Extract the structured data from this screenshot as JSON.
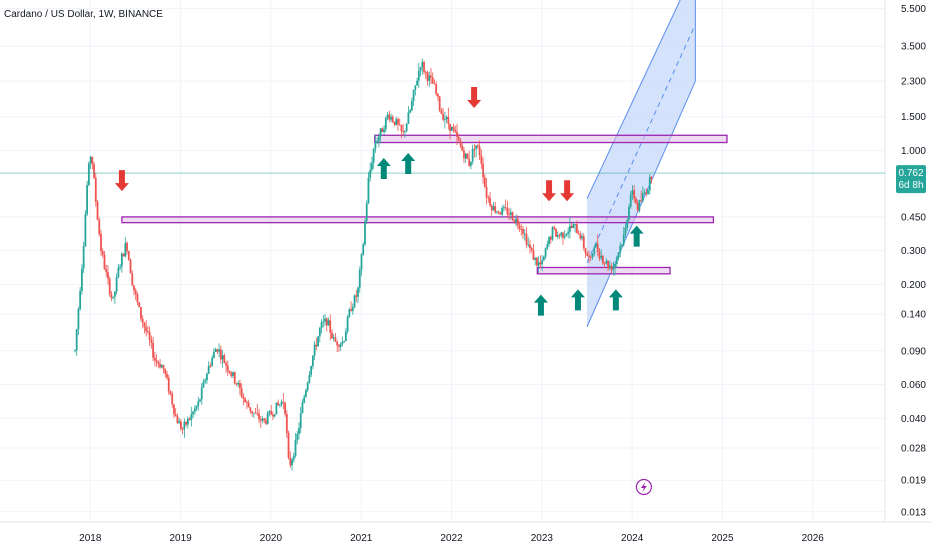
{
  "chart_data": {
    "type": "candlestick",
    "title": "Cardano / US Dollar, 1W, BINANCE",
    "y_scale": "log",
    "ylim": [
      0.0115,
      6.1
    ],
    "y_ticks": [
      {
        "value": 5.5,
        "label": "5.500"
      },
      {
        "value": 3.5,
        "label": "3.500"
      },
      {
        "value": 2.3,
        "label": "2.300"
      },
      {
        "value": 1.5,
        "label": "1.500"
      },
      {
        "value": 1.0,
        "label": "1.000"
      },
      {
        "value": 0.45,
        "label": "0.450"
      },
      {
        "value": 0.3,
        "label": "0.300"
      },
      {
        "value": 0.2,
        "label": "0.200"
      },
      {
        "value": 0.14,
        "label": "0.140"
      },
      {
        "value": 0.09,
        "label": "0.090"
      },
      {
        "value": 0.06,
        "label": "0.060"
      },
      {
        "value": 0.04,
        "label": "0.040"
      },
      {
        "value": 0.028,
        "label": "0.028"
      },
      {
        "value": 0.019,
        "label": "0.019"
      },
      {
        "value": 0.013,
        "label": "0.013"
      }
    ],
    "xlim": [
      2017.0,
      2026.8
    ],
    "x_ticks": [
      {
        "value": 2018,
        "label": "2018"
      },
      {
        "value": 2019,
        "label": "2019"
      },
      {
        "value": 2020,
        "label": "2020"
      },
      {
        "value": 2021,
        "label": "2021"
      },
      {
        "value": 2022,
        "label": "2022"
      },
      {
        "value": 2023,
        "label": "2023"
      },
      {
        "value": 2024,
        "label": "2024"
      },
      {
        "value": 2025,
        "label": "2025"
      },
      {
        "value": 2026,
        "label": "2026"
      }
    ],
    "current_price": {
      "value": 0.762,
      "label": "0.762",
      "countdown": "6d 8h"
    },
    "price_path": [
      [
        2017.83,
        0.09
      ],
      [
        2017.92,
        0.3
      ],
      [
        2017.97,
        0.72
      ],
      [
        2018.01,
        1.0
      ],
      [
        2018.06,
        0.55
      ],
      [
        2018.12,
        0.3
      ],
      [
        2018.18,
        0.22
      ],
      [
        2018.25,
        0.16
      ],
      [
        2018.32,
        0.25
      ],
      [
        2018.4,
        0.33
      ],
      [
        2018.47,
        0.2
      ],
      [
        2018.55,
        0.14
      ],
      [
        2018.63,
        0.11
      ],
      [
        2018.72,
        0.08
      ],
      [
        2018.8,
        0.075
      ],
      [
        2018.88,
        0.055
      ],
      [
        2018.95,
        0.04
      ],
      [
        2019.02,
        0.035
      ],
      [
        2019.1,
        0.04
      ],
      [
        2019.2,
        0.048
      ],
      [
        2019.3,
        0.072
      ],
      [
        2019.4,
        0.095
      ],
      [
        2019.48,
        0.08
      ],
      [
        2019.55,
        0.07
      ],
      [
        2019.63,
        0.06
      ],
      [
        2019.72,
        0.048
      ],
      [
        2019.82,
        0.042
      ],
      [
        2019.92,
        0.038
      ],
      [
        2020.05,
        0.045
      ],
      [
        2020.15,
        0.05
      ],
      [
        2020.2,
        0.022
      ],
      [
        2020.28,
        0.03
      ],
      [
        2020.36,
        0.05
      ],
      [
        2020.45,
        0.08
      ],
      [
        2020.55,
        0.12
      ],
      [
        2020.62,
        0.13
      ],
      [
        2020.7,
        0.1
      ],
      [
        2020.8,
        0.1
      ],
      [
        2020.88,
        0.15
      ],
      [
        2020.96,
        0.18
      ],
      [
        2021.02,
        0.32
      ],
      [
        2021.08,
        0.7
      ],
      [
        2021.15,
        1.1
      ],
      [
        2021.22,
        1.25
      ],
      [
        2021.3,
        1.55
      ],
      [
        2021.38,
        1.4
      ],
      [
        2021.46,
        1.2
      ],
      [
        2021.54,
        1.6
      ],
      [
        2021.62,
        2.4
      ],
      [
        2021.66,
        2.9
      ],
      [
        2021.72,
        2.5
      ],
      [
        2021.8,
        2.2
      ],
      [
        2021.88,
        1.6
      ],
      [
        2021.96,
        1.4
      ],
      [
        2022.04,
        1.2
      ],
      [
        2022.12,
        1.0
      ],
      [
        2022.2,
        0.85
      ],
      [
        2022.26,
        1.1
      ],
      [
        2022.32,
        0.95
      ],
      [
        2022.38,
        0.6
      ],
      [
        2022.46,
        0.5
      ],
      [
        2022.54,
        0.48
      ],
      [
        2022.62,
        0.48
      ],
      [
        2022.7,
        0.44
      ],
      [
        2022.78,
        0.4
      ],
      [
        2022.86,
        0.31
      ],
      [
        2022.94,
        0.26
      ],
      [
        2023.0,
        0.25
      ],
      [
        2023.06,
        0.32
      ],
      [
        2023.12,
        0.38
      ],
      [
        2023.18,
        0.36
      ],
      [
        2023.24,
        0.37
      ],
      [
        2023.3,
        0.39
      ],
      [
        2023.36,
        0.4
      ],
      [
        2023.42,
        0.37
      ],
      [
        2023.48,
        0.3
      ],
      [
        2023.54,
        0.26
      ],
      [
        2023.58,
        0.33
      ],
      [
        2023.62,
        0.3
      ],
      [
        2023.68,
        0.27
      ],
      [
        2023.74,
        0.25
      ],
      [
        2023.8,
        0.25
      ],
      [
        2023.86,
        0.31
      ],
      [
        2023.92,
        0.37
      ],
      [
        2023.98,
        0.6
      ],
      [
        2024.02,
        0.58
      ],
      [
        2024.06,
        0.5
      ],
      [
        2024.12,
        0.58
      ],
      [
        2024.18,
        0.65
      ],
      [
        2024.22,
        0.762
      ]
    ],
    "zones": [
      {
        "name": "resistance-zone-upper",
        "x_start": 2021.15,
        "x_end": 2025.05,
        "y_low": 1.1,
        "y_high": 1.2
      },
      {
        "name": "resistance-zone-middle",
        "x_start": 2018.35,
        "x_end": 2024.9,
        "y_low": 0.42,
        "y_high": 0.45
      },
      {
        "name": "support-zone-lower",
        "x_start": 2022.95,
        "x_end": 2024.42,
        "y_low": 0.227,
        "y_high": 0.245
      }
    ],
    "channel": {
      "start_x": 2023.5,
      "end_x": 2024.7,
      "lower_start": 0.12,
      "lower_end": 2.3,
      "upper_start": 0.56,
      "upper_end": 9.0,
      "mid_start": 0.26,
      "mid_end": 4.55
    },
    "arrows_down": [
      {
        "x": 2018.35,
        "y": 0.7
      },
      {
        "x": 2022.25,
        "y": 1.9
      },
      {
        "x": 2023.08,
        "y": 0.62
      },
      {
        "x": 2023.28,
        "y": 0.62
      }
    ],
    "arrows_up": [
      {
        "x": 2021.25,
        "y": 0.8
      },
      {
        "x": 2021.52,
        "y": 0.85
      },
      {
        "x": 2022.99,
        "y": 0.155
      },
      {
        "x": 2023.4,
        "y": 0.165
      },
      {
        "x": 2023.82,
        "y": 0.165
      },
      {
        "x": 2024.05,
        "y": 0.355
      }
    ],
    "colors": {
      "up": "#26a69a",
      "down": "#ef5350",
      "zone_fill": "#e1bee7",
      "zone_stroke": "#9c27b0",
      "channel_fill": "#c5d8fb",
      "channel_stroke": "#5b8ef0",
      "arrow_up": "#00897b",
      "arrow_down": "#e53935",
      "price_line": "#26a69a",
      "lightning": "#9c27b0"
    }
  }
}
